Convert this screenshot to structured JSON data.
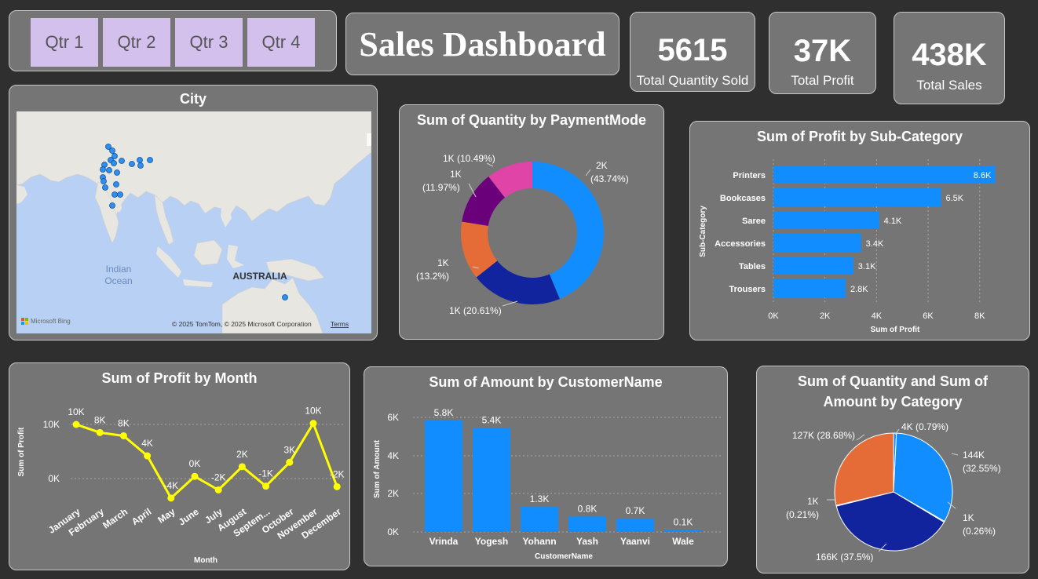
{
  "slicer": {
    "items": [
      "Qtr 1",
      "Qtr 2",
      "Qtr 3",
      "Qtr 4"
    ]
  },
  "dashboard": {
    "title": "Sales Dashboard"
  },
  "kpis": {
    "quantity": {
      "value": "5615",
      "label": "Total Quantity Sold"
    },
    "profit": {
      "value": "37K",
      "label": "Total Profit"
    },
    "sales": {
      "value": "438K",
      "label": "Total Sales"
    }
  },
  "city_map": {
    "title": "City",
    "ocean_label_1": "Indian",
    "ocean_label_2": "Ocean",
    "country_label": "AUSTRALIA",
    "bing_logo": "Microsoft Bing",
    "attribution": "© 2025 TomTom, © 2025 Microsoft Corporation",
    "terms": "Terms",
    "colors": {
      "water": "#b7d0f3",
      "land": "#e8e6e1",
      "point": "#2f8ff0"
    }
  },
  "payment_donut": {
    "title": "Sum of Quantity by PaymentMode",
    "labels": [
      "2K",
      "(43.74%)",
      "1K (20.61%)",
      "1K",
      "(13.2%)",
      "1K",
      "(11.97%)",
      "1K (10.49%)"
    ]
  },
  "subcat_bar": {
    "title": "Sum of Profit by Sub-Category",
    "ytitle": "Sub-Category",
    "xtitle": "Sum of Profit",
    "ticks": [
      "0K",
      "2K",
      "4K",
      "6K",
      "8K"
    ]
  },
  "month_line": {
    "title": "Sum of Profit by Month",
    "ytitle": "Sum of Profit",
    "xtitle": "Month",
    "yticks": [
      "10K",
      "0K"
    ]
  },
  "customer_bar": {
    "title": "Sum of Amount by CustomerName",
    "ytitle": "Sum of Amount",
    "xtitle": "CustomerName",
    "yticks": [
      "6K",
      "4K",
      "2K",
      "0K"
    ]
  },
  "category_pie": {
    "title_line1": "Sum of Quantity and Sum of",
    "title_line2": "Amount by Category",
    "labels": [
      "4K (0.79%)",
      "144K",
      "(32.55%)",
      "1K",
      "(0.26%)",
      "166K (37.5%)",
      "1K",
      "(0.21%)",
      "127K (28.68%)"
    ]
  },
  "chart_data": [
    {
      "type": "pie",
      "title": "Sum of Quantity by PaymentMode",
      "donut": true,
      "values": [
        43.74,
        20.61,
        13.2,
        11.97,
        10.49
      ],
      "data_labels": [
        "2K (43.74%)",
        "1K (20.61%)",
        "1K (13.2%)",
        "1K (11.97%)",
        "1K (10.49%)"
      ],
      "colors": [
        "#118dff",
        "#12239e",
        "#e66c37",
        "#6b007b",
        "#e044a7"
      ]
    },
    {
      "type": "bar",
      "orientation": "horizontal",
      "title": "Sum of Profit by Sub-Category",
      "categories": [
        "Printers",
        "Bookcases",
        "Saree",
        "Accessories",
        "Tables",
        "Trousers"
      ],
      "values": [
        8.6,
        6.5,
        4.1,
        3.4,
        3.1,
        2.8
      ],
      "data_labels": [
        "8.6K",
        "6.5K",
        "4.1K",
        "3.4K",
        "3.1K",
        "2.8K"
      ],
      "unit": "K",
      "xlabel": "Sum of Profit",
      "ylabel": "Sub-Category",
      "xlim": [
        0,
        8.8
      ],
      "color": "#118dff"
    },
    {
      "type": "line",
      "title": "Sum of Profit by Month",
      "categories": [
        "January",
        "February",
        "March",
        "April",
        "May",
        "June",
        "July",
        "August",
        "Septem...",
        "October",
        "November",
        "December"
      ],
      "values": [
        10,
        8.5,
        7.9,
        4.2,
        -3.6,
        0.4,
        -2.1,
        2.2,
        -1.4,
        3,
        10.2,
        -1.5
      ],
      "data_labels": [
        "10K",
        "8K",
        "8K",
        "4K",
        "-4K",
        "0K",
        "-2K",
        "2K",
        "-1K",
        "3K",
        "10K",
        "-2K"
      ],
      "unit": "K",
      "xlabel": "Month",
      "ylabel": "Sum of Profit",
      "ylim": [
        -5,
        13.5
      ],
      "color": "#ffff00"
    },
    {
      "type": "bar",
      "title": "Sum of Amount by CustomerName",
      "categories": [
        "Vrinda",
        "Yogesh",
        "Yohann",
        "Yash",
        "Yaanvi",
        "Wale"
      ],
      "values": [
        5.8,
        5.4,
        1.3,
        0.8,
        0.7,
        0.1
      ],
      "data_labels": [
        "5.8K",
        "5.4K",
        "1.3K",
        "0.8K",
        "0.7K",
        "0.1K"
      ],
      "unit": "K",
      "xlabel": "CustomerName",
      "ylabel": "Sum of Amount",
      "ylim": [
        0,
        6
      ],
      "color": "#118dff"
    },
    {
      "type": "pie",
      "title": "Sum of Quantity and Sum of Amount by Category",
      "values": [
        0.79,
        32.55,
        0.26,
        37.5,
        0.21,
        28.68
      ],
      "data_labels": [
        "4K (0.79%)",
        "144K (32.55%)",
        "1K (0.26%)",
        "166K (37.5%)",
        "1K (0.21%)",
        "127K (28.68%)"
      ],
      "colors": [
        "#118dff",
        "#118dff",
        "#118dff",
        "#12239e",
        "#e66c37",
        "#e66c37"
      ]
    }
  ]
}
